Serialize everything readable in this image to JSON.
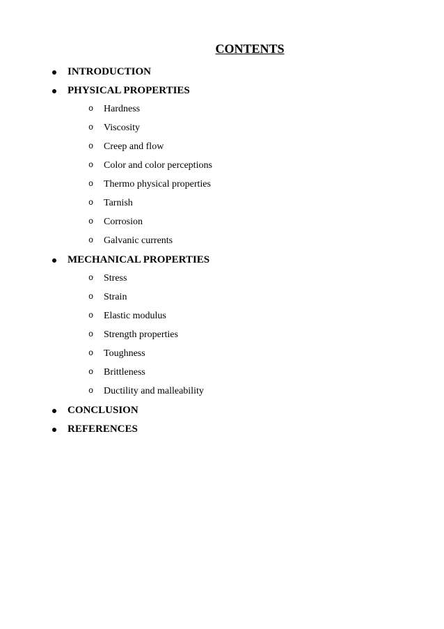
{
  "title": "CONTENTS",
  "sections": [
    {
      "heading": "INTRODUCTION",
      "items": []
    },
    {
      "heading": "PHYSICAL PROPERTIES",
      "items": [
        "Hardness",
        "Viscosity",
        "Creep and flow",
        "Color and color perceptions",
        "Thermo physical properties",
        "Tarnish",
        "Corrosion",
        "Galvanic currents"
      ]
    },
    {
      "heading": "MECHANICAL PROPERTIES",
      "items": [
        "Stress",
        "Strain",
        "Elastic modulus",
        "Strength properties",
        "Toughness",
        "Brittleness",
        "Ductility and malleability"
      ]
    },
    {
      "heading": "CONCLUSION",
      "items": []
    },
    {
      "heading": "REFERENCES",
      "items": []
    }
  ],
  "style": {
    "background_color": "#ffffff",
    "text_color": "#000000",
    "font_family": "Times New Roman",
    "title_fontsize": 18,
    "heading_fontsize": 15,
    "item_fontsize": 14
  }
}
